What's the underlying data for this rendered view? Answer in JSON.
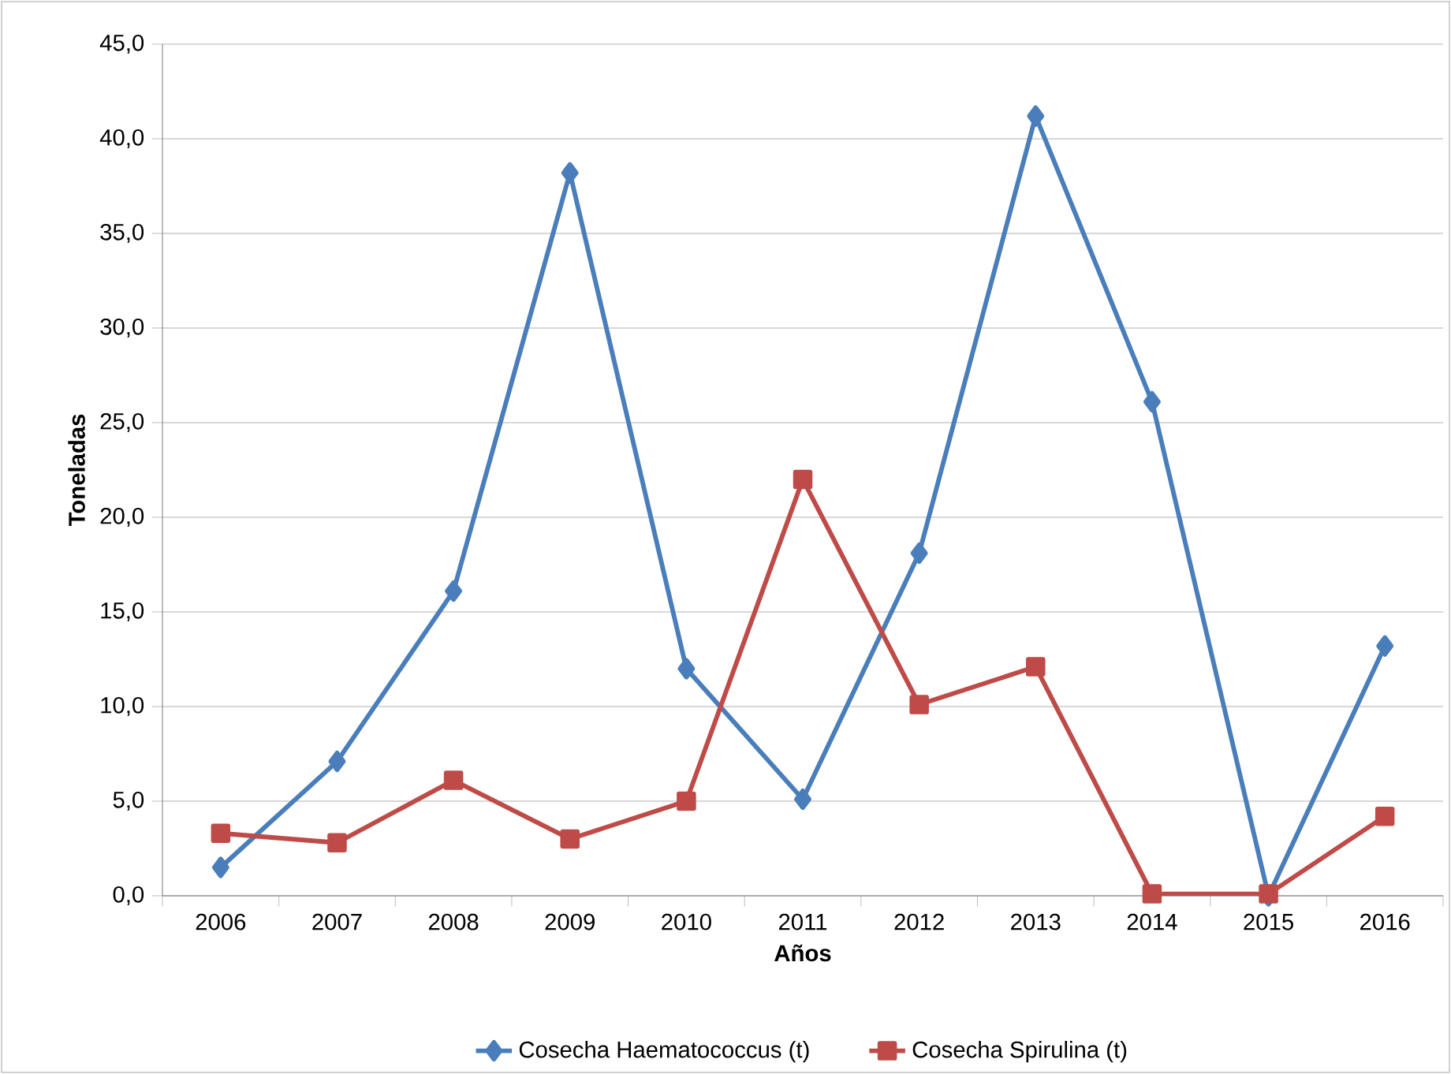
{
  "chart_data": {
    "type": "line",
    "xlabel": "Años",
    "ylabel": "Toneladas",
    "categories": [
      "2006",
      "2007",
      "2008",
      "2009",
      "2010",
      "2011",
      "2012",
      "2013",
      "2014",
      "2015",
      "2016"
    ],
    "series": [
      {
        "name": "Cosecha Haematococcus (t)",
        "color": "#4a7ebb",
        "marker": "diamond",
        "values": [
          1.5,
          7.1,
          16.1,
          38.2,
          12.0,
          5.1,
          18.1,
          41.2,
          26.1,
          0.0,
          13.2
        ]
      },
      {
        "name": "Cosecha Spirulina (t)",
        "color": "#be4b48",
        "marker": "square",
        "values": [
          3.3,
          2.8,
          6.1,
          3.0,
          5.0,
          22.0,
          10.1,
          12.1,
          0.1,
          0.1,
          4.2
        ]
      }
    ],
    "ylim": [
      0,
      45
    ],
    "yticks": [
      {
        "value": 0,
        "label": "0,0"
      },
      {
        "value": 5,
        "label": "5,0"
      },
      {
        "value": 10,
        "label": "10,0"
      },
      {
        "value": 15,
        "label": "15,0"
      },
      {
        "value": 20,
        "label": "20,0"
      },
      {
        "value": 25,
        "label": "25,0"
      },
      {
        "value": 30,
        "label": "30,0"
      },
      {
        "value": 35,
        "label": "35,0"
      },
      {
        "value": 40,
        "label": "40,0"
      },
      {
        "value": 45,
        "label": "45,0"
      }
    ],
    "grid": "y",
    "legend": "bottom",
    "line_style": "solid"
  }
}
